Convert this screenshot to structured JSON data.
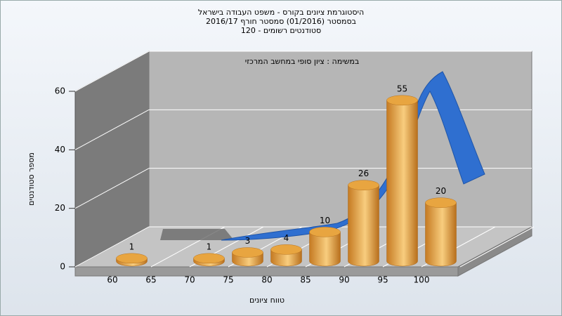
{
  "chart_data": {
    "type": "bar",
    "title": [
      "היסטוגרמת ציונים בקורס - משפט העבודה בישראל",
      "בסמסטר  (01/2016)  סמסטר חורף 2016/17",
      "120 - סטודנטים רשומים"
    ],
    "annotation": "במשימה : ציון סופי במחשב המרכזי",
    "x_label": "טווח ציונים",
    "y_label": "מספר סטודנטים",
    "categories": [
      "60",
      "65",
      "70",
      "75",
      "80",
      "85",
      "90",
      "95",
      "100"
    ],
    "values": [
      1,
      null,
      1,
      3,
      4,
      10,
      26,
      55,
      20
    ],
    "color": "#e8a540",
    "ylim": [
      0,
      60
    ],
    "yticks": [
      0,
      20,
      40,
      60
    ],
    "grid": true
  }
}
